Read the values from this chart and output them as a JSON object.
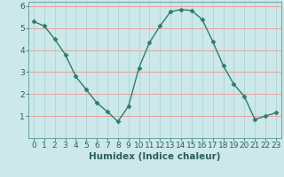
{
  "x": [
    0,
    1,
    2,
    3,
    4,
    5,
    6,
    7,
    8,
    9,
    10,
    11,
    12,
    13,
    14,
    15,
    16,
    17,
    18,
    19,
    20,
    21,
    22,
    23
  ],
  "y": [
    5.3,
    5.1,
    4.5,
    3.8,
    2.8,
    2.2,
    1.6,
    1.2,
    0.75,
    1.45,
    3.2,
    4.35,
    5.1,
    5.75,
    5.85,
    5.8,
    5.4,
    4.4,
    3.3,
    2.45,
    1.9,
    0.85,
    1.0,
    1.15
  ],
  "line_color": "#2e7d6e",
  "marker": "D",
  "marker_size": 2.5,
  "bg_color": "#cce8e8",
  "grid_v_color": "#b0d8d8",
  "grid_h_color": "#e8a0a0",
  "xlabel": "Humidex (Indice chaleur)",
  "ylabel": "",
  "xlim": [
    -0.5,
    23.5
  ],
  "ylim": [
    0,
    6.2
  ],
  "yticks": [
    1,
    2,
    3,
    4,
    5,
    6
  ],
  "xticks": [
    0,
    1,
    2,
    3,
    4,
    5,
    6,
    7,
    8,
    9,
    10,
    11,
    12,
    13,
    14,
    15,
    16,
    17,
    18,
    19,
    20,
    21,
    22,
    23
  ],
  "xlabel_fontsize": 7.5,
  "tick_fontsize": 6.5
}
